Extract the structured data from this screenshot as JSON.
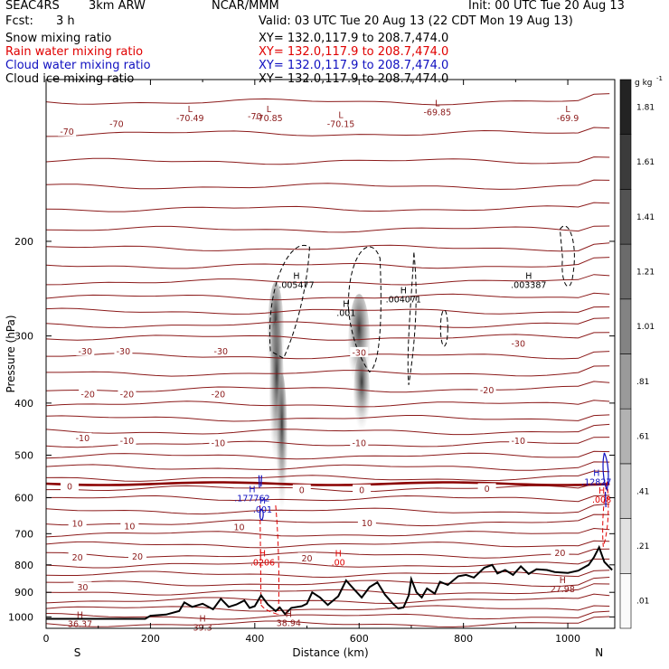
{
  "header": {
    "project": "SEAC4RS",
    "model": "3km ARW",
    "org": "NCAR/MMM",
    "init": "Init: 00 UTC Tue 20 Aug 13",
    "fcst_label": "Fcst:",
    "fcst_value": "3 h",
    "valid": "Valid: 03 UTC Tue 20 Aug 13 (22 CDT Mon 19 Aug 13)"
  },
  "fields": [
    {
      "name": "Snow mixing ratio",
      "xy": "XY= 132.0,117.9 to 208.7,474.0",
      "color": "#000000"
    },
    {
      "name": "Rain water mixing ratio",
      "xy": "XY= 132.0,117.9 to 208.7,474.0",
      "color": "#e00000"
    },
    {
      "name": "Cloud water mixing ratio",
      "xy": "XY= 132.0,117.9 to 208.7,474.0",
      "color": "#1010c0"
    },
    {
      "name": "Cloud ice mixing ratio",
      "xy": "XY= 132.0,117.9 to 208.7,474.0",
      "color": "#000000"
    }
  ],
  "chart_data": {
    "type": "heatmap",
    "title": "",
    "xlabel": "Distance (km)",
    "ylabel": "Pressure (hPa)",
    "xlim": [
      0,
      1090
    ],
    "ylim": [
      1050,
      100
    ],
    "y_log": true,
    "x_ticks": [
      0,
      200,
      400,
      600,
      800,
      1000
    ],
    "y_ticks": [
      200,
      300,
      400,
      500,
      600,
      700,
      800,
      900,
      1000
    ],
    "x_end_labels": {
      "left": "S",
      "right": "N"
    },
    "colorbar": {
      "unit": "g kg",
      "unit_exp": "-1",
      "ticks": [
        ".01",
        ".21",
        ".41",
        ".61",
        ".81",
        "1.01",
        "1.21",
        "1.41",
        "1.61",
        "1.81"
      ]
    },
    "temperature_contours": {
      "color": "#8b1a1a",
      "zero_color": "#8b0000",
      "labels": [
        {
          "text": "-70",
          "x": 40,
          "p": 125
        },
        {
          "text": "-70",
          "x": 135,
          "p": 121
        },
        {
          "text": "-70",
          "x": 400,
          "p": 117
        },
        {
          "text": "-30",
          "x": 75,
          "p": 320
        },
        {
          "text": "-30",
          "x": 148,
          "p": 320
        },
        {
          "text": "-30",
          "x": 335,
          "p": 320
        },
        {
          "text": "-30",
          "x": 600,
          "p": 322
        },
        {
          "text": "-30",
          "x": 905,
          "p": 310
        },
        {
          "text": "-20",
          "x": 80,
          "p": 385
        },
        {
          "text": "-20",
          "x": 155,
          "p": 385
        },
        {
          "text": "-20",
          "x": 330,
          "p": 385
        },
        {
          "text": "-20",
          "x": 845,
          "p": 378
        },
        {
          "text": "-10",
          "x": 70,
          "p": 465
        },
        {
          "text": "-10",
          "x": 155,
          "p": 470
        },
        {
          "text": "-10",
          "x": 330,
          "p": 475
        },
        {
          "text": "-10",
          "x": 600,
          "p": 475
        },
        {
          "text": "-10",
          "x": 905,
          "p": 470
        },
        {
          "text": "0",
          "x": 45,
          "p": 572
        },
        {
          "text": "0",
          "x": 490,
          "p": 580
        },
        {
          "text": "0",
          "x": 605,
          "p": 580
        },
        {
          "text": "0",
          "x": 845,
          "p": 577
        },
        {
          "text": "10",
          "x": 60,
          "p": 670
        },
        {
          "text": "10",
          "x": 160,
          "p": 678
        },
        {
          "text": "10",
          "x": 370,
          "p": 680
        },
        {
          "text": "10",
          "x": 615,
          "p": 668
        },
        {
          "text": "20",
          "x": 60,
          "p": 775
        },
        {
          "text": "20",
          "x": 175,
          "p": 772
        },
        {
          "text": "20",
          "x": 500,
          "p": 777
        },
        {
          "text": "20",
          "x": 985,
          "p": 760
        },
        {
          "text": "30",
          "x": 70,
          "p": 880
        }
      ]
    },
    "extrema_labels": [
      {
        "mark": "L",
        "value": "-70.49",
        "x": 276,
        "p": 115,
        "color": "#8b1a1a"
      },
      {
        "mark": "L",
        "value": "-70.85",
        "x": 427,
        "p": 115,
        "color": "#8b1a1a"
      },
      {
        "mark": "L",
        "value": "-70.15",
        "x": 565,
        "p": 118,
        "color": "#8b1a1a"
      },
      {
        "mark": "L",
        "value": "-69.85",
        "x": 750,
        "p": 112,
        "color": "#8b1a1a"
      },
      {
        "mark": "L",
        "value": "-69.9",
        "x": 1000,
        "p": 115,
        "color": "#8b1a1a"
      },
      {
        "mark": "H",
        "value": ".005477",
        "x": 480,
        "p": 235,
        "color": "#000000"
      },
      {
        "mark": "H",
        "value": ".001",
        "x": 575,
        "p": 265,
        "color": "#000000"
      },
      {
        "mark": "H",
        "value": ".004071",
        "x": 685,
        "p": 250,
        "color": "#000000"
      },
      {
        "mark": "H",
        "value": ".003387",
        "x": 925,
        "p": 235,
        "color": "#000000"
      },
      {
        "mark": "H",
        "value": ".177762",
        "x": 395,
        "p": 586,
        "color": "#1010c0"
      },
      {
        "mark": "H",
        "value": ".001",
        "x": 415,
        "p": 615,
        "color": "#1010c0"
      },
      {
        "mark": "H",
        "value": ".12827",
        "x": 1055,
        "p": 547,
        "color": "#1010c0"
      },
      {
        "mark": "H",
        "value": ".0206",
        "x": 415,
        "p": 772,
        "color": "#e00000"
      },
      {
        "mark": "H",
        "value": ".00",
        "x": 560,
        "p": 772,
        "color": "#e00000"
      },
      {
        "mark": "H",
        "value": ".008",
        "x": 1065,
        "p": 590,
        "color": "#e00000"
      },
      {
        "mark": "H",
        "value": "36.37",
        "x": 65,
        "p": 1005,
        "color": "#8b1a1a"
      },
      {
        "mark": "H",
        "value": "39.3",
        "x": 300,
        "p": 1020,
        "color": "#8b1a1a"
      },
      {
        "mark": "H",
        "value": "38.94",
        "x": 465,
        "p": 1000,
        "color": "#8b1a1a"
      },
      {
        "mark": "H",
        "value": "27.98",
        "x": 990,
        "p": 865,
        "color": "#8b1a1a"
      }
    ],
    "terrain_p": [
      [
        0,
        1008
      ],
      [
        190,
        1008
      ],
      [
        200,
        995
      ],
      [
        230,
        990
      ],
      [
        255,
        975
      ],
      [
        265,
        940
      ],
      [
        280,
        958
      ],
      [
        300,
        945
      ],
      [
        320,
        968
      ],
      [
        335,
        925
      ],
      [
        350,
        958
      ],
      [
        365,
        948
      ],
      [
        380,
        932
      ],
      [
        390,
        962
      ],
      [
        400,
        955
      ],
      [
        412,
        912
      ],
      [
        425,
        948
      ],
      [
        440,
        975
      ],
      [
        448,
        960
      ],
      [
        458,
        988
      ],
      [
        470,
        962
      ],
      [
        490,
        955
      ],
      [
        500,
        945
      ],
      [
        510,
        900
      ],
      [
        525,
        920
      ],
      [
        540,
        950
      ],
      [
        560,
        915
      ],
      [
        575,
        855
      ],
      [
        590,
        888
      ],
      [
        605,
        920
      ],
      [
        620,
        880
      ],
      [
        635,
        862
      ],
      [
        650,
        910
      ],
      [
        665,
        945
      ],
      [
        675,
        965
      ],
      [
        685,
        960
      ],
      [
        695,
        912
      ],
      [
        700,
        850
      ],
      [
        710,
        900
      ],
      [
        720,
        920
      ],
      [
        730,
        885
      ],
      [
        745,
        905
      ],
      [
        755,
        860
      ],
      [
        770,
        872
      ],
      [
        790,
        840
      ],
      [
        805,
        835
      ],
      [
        820,
        845
      ],
      [
        840,
        810
      ],
      [
        855,
        800
      ],
      [
        865,
        830
      ],
      [
        880,
        818
      ],
      [
        895,
        835
      ],
      [
        910,
        805
      ],
      [
        925,
        832
      ],
      [
        940,
        815
      ],
      [
        960,
        818
      ],
      [
        975,
        825
      ],
      [
        1000,
        828
      ],
      [
        1020,
        820
      ],
      [
        1040,
        800
      ],
      [
        1050,
        775
      ],
      [
        1060,
        742
      ],
      [
        1070,
        790
      ],
      [
        1085,
        818
      ]
    ]
  }
}
